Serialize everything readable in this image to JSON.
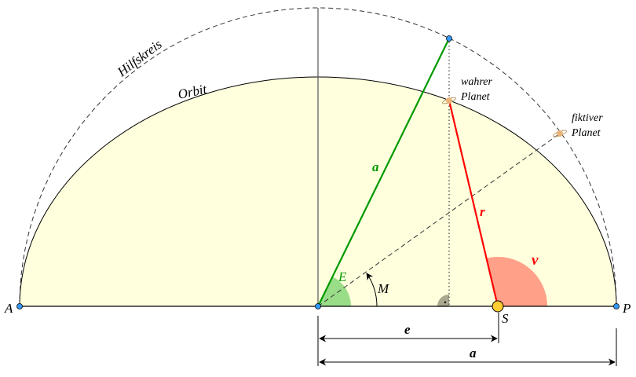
{
  "labels": {
    "hilfskreis": "Hilfskreis",
    "orbit": "Orbit",
    "wahrer_line1": "wahrer",
    "wahrer_line2": "Planet",
    "fiktiver_line1": "fiktiver",
    "fiktiver_line2": "Planet",
    "a_green": "a",
    "r": "r",
    "nu": "ν",
    "E": "E",
    "M": "M",
    "A": "A",
    "P": "P",
    "S": "S",
    "e_dim": "e",
    "a_dim": "a"
  },
  "colors": {
    "orbit_fill": "#ffffdd",
    "semi_major_line": "#009900",
    "radius_line": "#ff0000",
    "E_wedge": "#99dd88",
    "nu_wedge": "#ffa088",
    "right_angle": "#aaa890",
    "sun": "#ffcc33",
    "point": "#3399ff"
  }
}
